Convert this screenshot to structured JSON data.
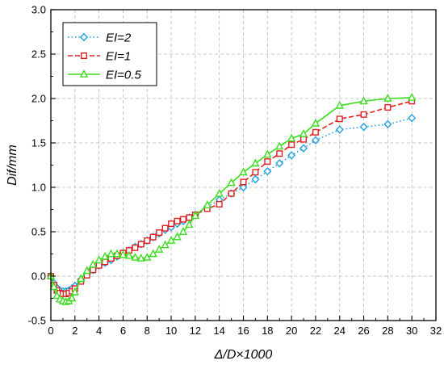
{
  "chart_data": {
    "type": "line",
    "xlabel": "Δ/D×1000",
    "ylabel": "Dif/mm",
    "xlim": [
      0,
      32
    ],
    "ylim": [
      -0.5,
      3.0
    ],
    "xticks": [
      0,
      2,
      4,
      6,
      8,
      10,
      12,
      14,
      16,
      18,
      20,
      22,
      24,
      26,
      28,
      30,
      32
    ],
    "yticks": [
      -0.5,
      0.0,
      0.5,
      1.0,
      1.5,
      2.0,
      2.5,
      3.0
    ],
    "xtick_labels": [
      "0",
      "2",
      "4",
      "6",
      "8",
      "10",
      "12",
      "14",
      "16",
      "18",
      "20",
      "22",
      "24",
      "26",
      "28",
      "30",
      "32"
    ],
    "ytick_labels": [
      "-0.5",
      "0.0",
      "0.5",
      "1.0",
      "1.5",
      "2.0",
      "2.5",
      "3.0"
    ],
    "grid": true,
    "legend_position": "top-left",
    "series": [
      {
        "name": "EI=2",
        "color": "#1f9fe0",
        "line_style": "dotted",
        "marker": "diamond",
        "x": [
          0,
          0.25,
          0.5,
          0.75,
          1.0,
          1.25,
          1.5,
          1.75,
          2.0,
          2.5,
          3.0,
          3.5,
          4.0,
          4.5,
          5.0,
          5.5,
          6.0,
          6.5,
          7.0,
          7.5,
          8.0,
          8.5,
          9.0,
          9.5,
          10.0,
          10.5,
          11.0,
          11.5,
          12.0,
          13.0,
          14.0,
          15.0,
          16.0,
          17.0,
          18.0,
          19.0,
          20.0,
          21.0,
          22.0,
          24.0,
          26.0,
          28.0,
          30.0
        ],
        "y": [
          0.0,
          -0.08,
          -0.13,
          -0.16,
          -0.17,
          -0.17,
          -0.16,
          -0.14,
          -0.11,
          -0.04,
          0.02,
          0.07,
          0.12,
          0.15,
          0.18,
          0.22,
          0.26,
          0.29,
          0.33,
          0.36,
          0.4,
          0.44,
          0.48,
          0.52,
          0.55,
          0.59,
          0.62,
          0.66,
          0.69,
          0.78,
          0.86,
          0.93,
          1.0,
          1.09,
          1.18,
          1.27,
          1.36,
          1.44,
          1.53,
          1.65,
          1.68,
          1.71,
          1.78
        ]
      },
      {
        "name": "EI=1",
        "color": "#e02020",
        "line_style": "dashed",
        "marker": "square",
        "x": [
          0,
          0.25,
          0.5,
          0.75,
          1.0,
          1.25,
          1.5,
          1.75,
          2.0,
          2.5,
          3.0,
          3.5,
          4.0,
          4.5,
          5.0,
          5.5,
          6.0,
          6.5,
          7.0,
          7.5,
          8.0,
          8.5,
          9.0,
          9.5,
          10.0,
          10.5,
          11.0,
          11.5,
          12.0,
          13.0,
          14.0,
          15.0,
          16.0,
          17.0,
          18.0,
          19.0,
          20.0,
          21.0,
          22.0,
          24.0,
          26.0,
          28.0,
          30.0
        ],
        "y": [
          0.0,
          -0.1,
          -0.16,
          -0.19,
          -0.2,
          -0.2,
          -0.19,
          -0.17,
          -0.14,
          -0.06,
          0.01,
          0.07,
          0.12,
          0.16,
          0.2,
          0.23,
          0.26,
          0.29,
          0.32,
          0.36,
          0.4,
          0.44,
          0.49,
          0.54,
          0.59,
          0.62,
          0.64,
          0.66,
          0.69,
          0.76,
          0.81,
          0.93,
          1.06,
          1.17,
          1.29,
          1.38,
          1.48,
          1.54,
          1.62,
          1.77,
          1.82,
          1.9,
          1.97
        ]
      },
      {
        "name": "EI=0.5",
        "color": "#3bdc1f",
        "line_style": "solid",
        "marker": "triangle",
        "x": [
          0,
          0.25,
          0.5,
          0.75,
          1.0,
          1.25,
          1.5,
          1.75,
          2.0,
          2.5,
          3.0,
          3.5,
          4.0,
          4.5,
          5.0,
          5.5,
          6.0,
          6.5,
          7.0,
          7.5,
          8.0,
          8.5,
          9.0,
          9.5,
          10.0,
          10.5,
          11.0,
          11.5,
          12.0,
          13.0,
          14.0,
          15.0,
          16.0,
          17.0,
          18.0,
          19.0,
          20.0,
          21.0,
          22.0,
          24.0,
          26.0,
          28.0,
          30.0
        ],
        "y": [
          0.0,
          -0.12,
          -0.22,
          -0.26,
          -0.28,
          -0.29,
          -0.28,
          -0.25,
          -0.18,
          -0.03,
          0.06,
          0.13,
          0.18,
          0.22,
          0.25,
          0.25,
          0.24,
          0.23,
          0.21,
          0.2,
          0.21,
          0.25,
          0.3,
          0.35,
          0.4,
          0.44,
          0.5,
          0.58,
          0.68,
          0.8,
          0.93,
          1.05,
          1.17,
          1.27,
          1.37,
          1.46,
          1.55,
          1.6,
          1.72,
          1.92,
          1.97,
          2.0,
          2.01
        ]
      }
    ]
  }
}
